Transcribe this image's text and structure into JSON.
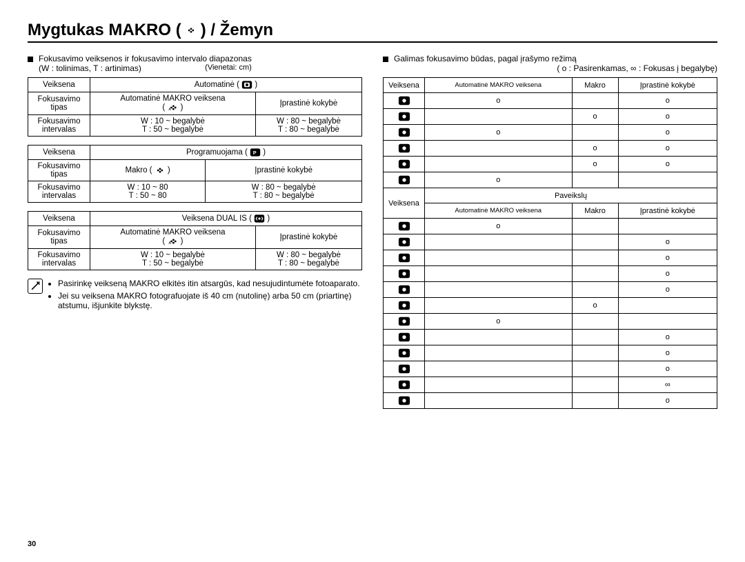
{
  "title_prefix": "Mygtukas MAKRO (",
  "title_suffix": ") / Žemyn",
  "left": {
    "intro_line1": "Fokusavimo veiksenos ir fokusavimo intervalo diapazonas",
    "intro_line2": "(W : tolinimas, T : artinimas)",
    "units": "(Vienetai: cm)",
    "row_veiksena": "Veiksena",
    "row_fok_tipas1": "Fokusavimo",
    "row_fok_tipas2": "tipas",
    "row_fok_int1": "Fokusavimo",
    "row_fok_int2": "intervalas",
    "t1_mode": "Automatinė (",
    "t1_type1a": "Automatinė MAKRO veiksena",
    "t1_type2": "Įprastinė kokybė",
    "t1_int1a": "W : 10 ~ begalybė",
    "t1_int1b": "T : 50 ~ begalybė",
    "t1_int2a": "W : 80 ~ begalybė",
    "t1_int2b": "T : 80 ~ begalybė",
    "t2_mode": "Programuojama (",
    "t2_type1": "Makro (",
    "t2_type2": "Įprastinė kokybė",
    "t2_int1a": "W : 10 ~ 80",
    "t2_int1b": "T : 50 ~  80",
    "t2_int2a": "W : 80 ~ begalybė",
    "t2_int2b": "T : 80 ~ begalybė",
    "t3_mode": "Veiksena DUAL IS (",
    "t3_type1a": "Automatinė MAKRO veiksena",
    "t3_type2": "Įprastinė kokybė",
    "t3_int1a": "W : 10 ~ begalybė",
    "t3_int1b": "T : 50 ~ begalybė",
    "t3_int2a": "W : 80 ~ begalybė",
    "t3_int2b": "T : 80 ~ begalybė",
    "note1": "Pasirinkę veikseną MAKRO elkitės itin atsargūs, kad nesujudintumėte fotoaparato.",
    "note2": "Jei su veiksena MAKRO fotografuojate iš 40 cm (nutolinę) arba 50 cm (priartinę) atstumu, išjunkite blykstę."
  },
  "right": {
    "intro": "Galimas fokusavimo būdas, pagal įrašymo režimą",
    "legend": "( o : Pasirenkamas, ∞ : Fokusas į begalybę)",
    "hdr_veiksena": "Veiksena",
    "hdr_auto": "Automatinė MAKRO veiksena",
    "hdr_makro": "Makro",
    "hdr_iprast": "Įprastinė kokybė",
    "hdr_paveikslu": "Paveikslų",
    "o": "o",
    "inf": "∞",
    "rows1": [
      {
        "a": "o",
        "m": "",
        "i": "o"
      },
      {
        "a": "",
        "m": "o",
        "i": "o"
      },
      {
        "a": "o",
        "m": "",
        "i": "o"
      },
      {
        "a": "",
        "m": "o",
        "i": "o"
      },
      {
        "a": "",
        "m": "o",
        "i": "o"
      },
      {
        "a": "o",
        "m": "",
        "i": ""
      }
    ],
    "rows2": [
      {
        "a": "o",
        "m": "",
        "i": ""
      },
      {
        "a": "",
        "m": "",
        "i": "o"
      },
      {
        "a": "",
        "m": "",
        "i": "o"
      },
      {
        "a": "",
        "m": "",
        "i": "o"
      },
      {
        "a": "",
        "m": "",
        "i": "o"
      },
      {
        "a": "",
        "m": "o",
        "i": ""
      },
      {
        "a": "o",
        "m": "",
        "i": ""
      },
      {
        "a": "",
        "m": "",
        "i": "o"
      },
      {
        "a": "",
        "m": "",
        "i": "o"
      },
      {
        "a": "",
        "m": "",
        "i": "o"
      },
      {
        "a": "",
        "m": "",
        "i": "∞"
      },
      {
        "a": "",
        "m": "",
        "i": "o"
      }
    ]
  },
  "pagenum": "30"
}
